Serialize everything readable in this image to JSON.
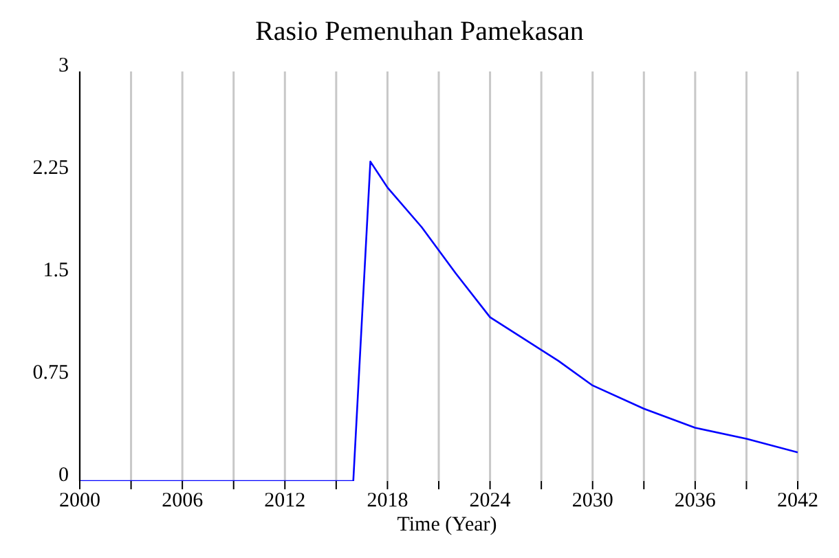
{
  "chart_data": {
    "type": "line",
    "title": "Rasio Pemenuhan Pamekasan",
    "xlabel": "Time (Year)",
    "x": [
      2000,
      2004,
      2008,
      2012,
      2016,
      2017,
      2018,
      2020,
      2022,
      2024,
      2026,
      2028,
      2030,
      2033,
      2036,
      2039,
      2042
    ],
    "series": [
      {
        "color": "#0000ff",
        "values": [
          0,
          0,
          0,
          0,
          0,
          2.34,
          2.15,
          1.86,
          1.52,
          1.2,
          1.04,
          0.88,
          0.7,
          0.53,
          0.39,
          0.31,
          0.21
        ]
      }
    ],
    "xlim": [
      2000,
      2042
    ],
    "xticks": [
      2000,
      {
        "value": 2003,
        "label": null
      },
      2006,
      {
        "value": 2009,
        "label": null
      },
      2012,
      {
        "value": 2015,
        "label": null
      },
      2018,
      {
        "value": 2021,
        "label": null
      },
      2024,
      {
        "value": 2027,
        "label": null
      },
      2030,
      {
        "value": 2033,
        "label": null
      },
      2036,
      {
        "value": 2039,
        "label": null
      },
      2042
    ],
    "ylim": [
      0,
      3
    ],
    "yticks": [
      0,
      0.75,
      1.5,
      2.25,
      3
    ],
    "grid": "x",
    "legend": false,
    "marker": "none",
    "line_style": "solid"
  }
}
